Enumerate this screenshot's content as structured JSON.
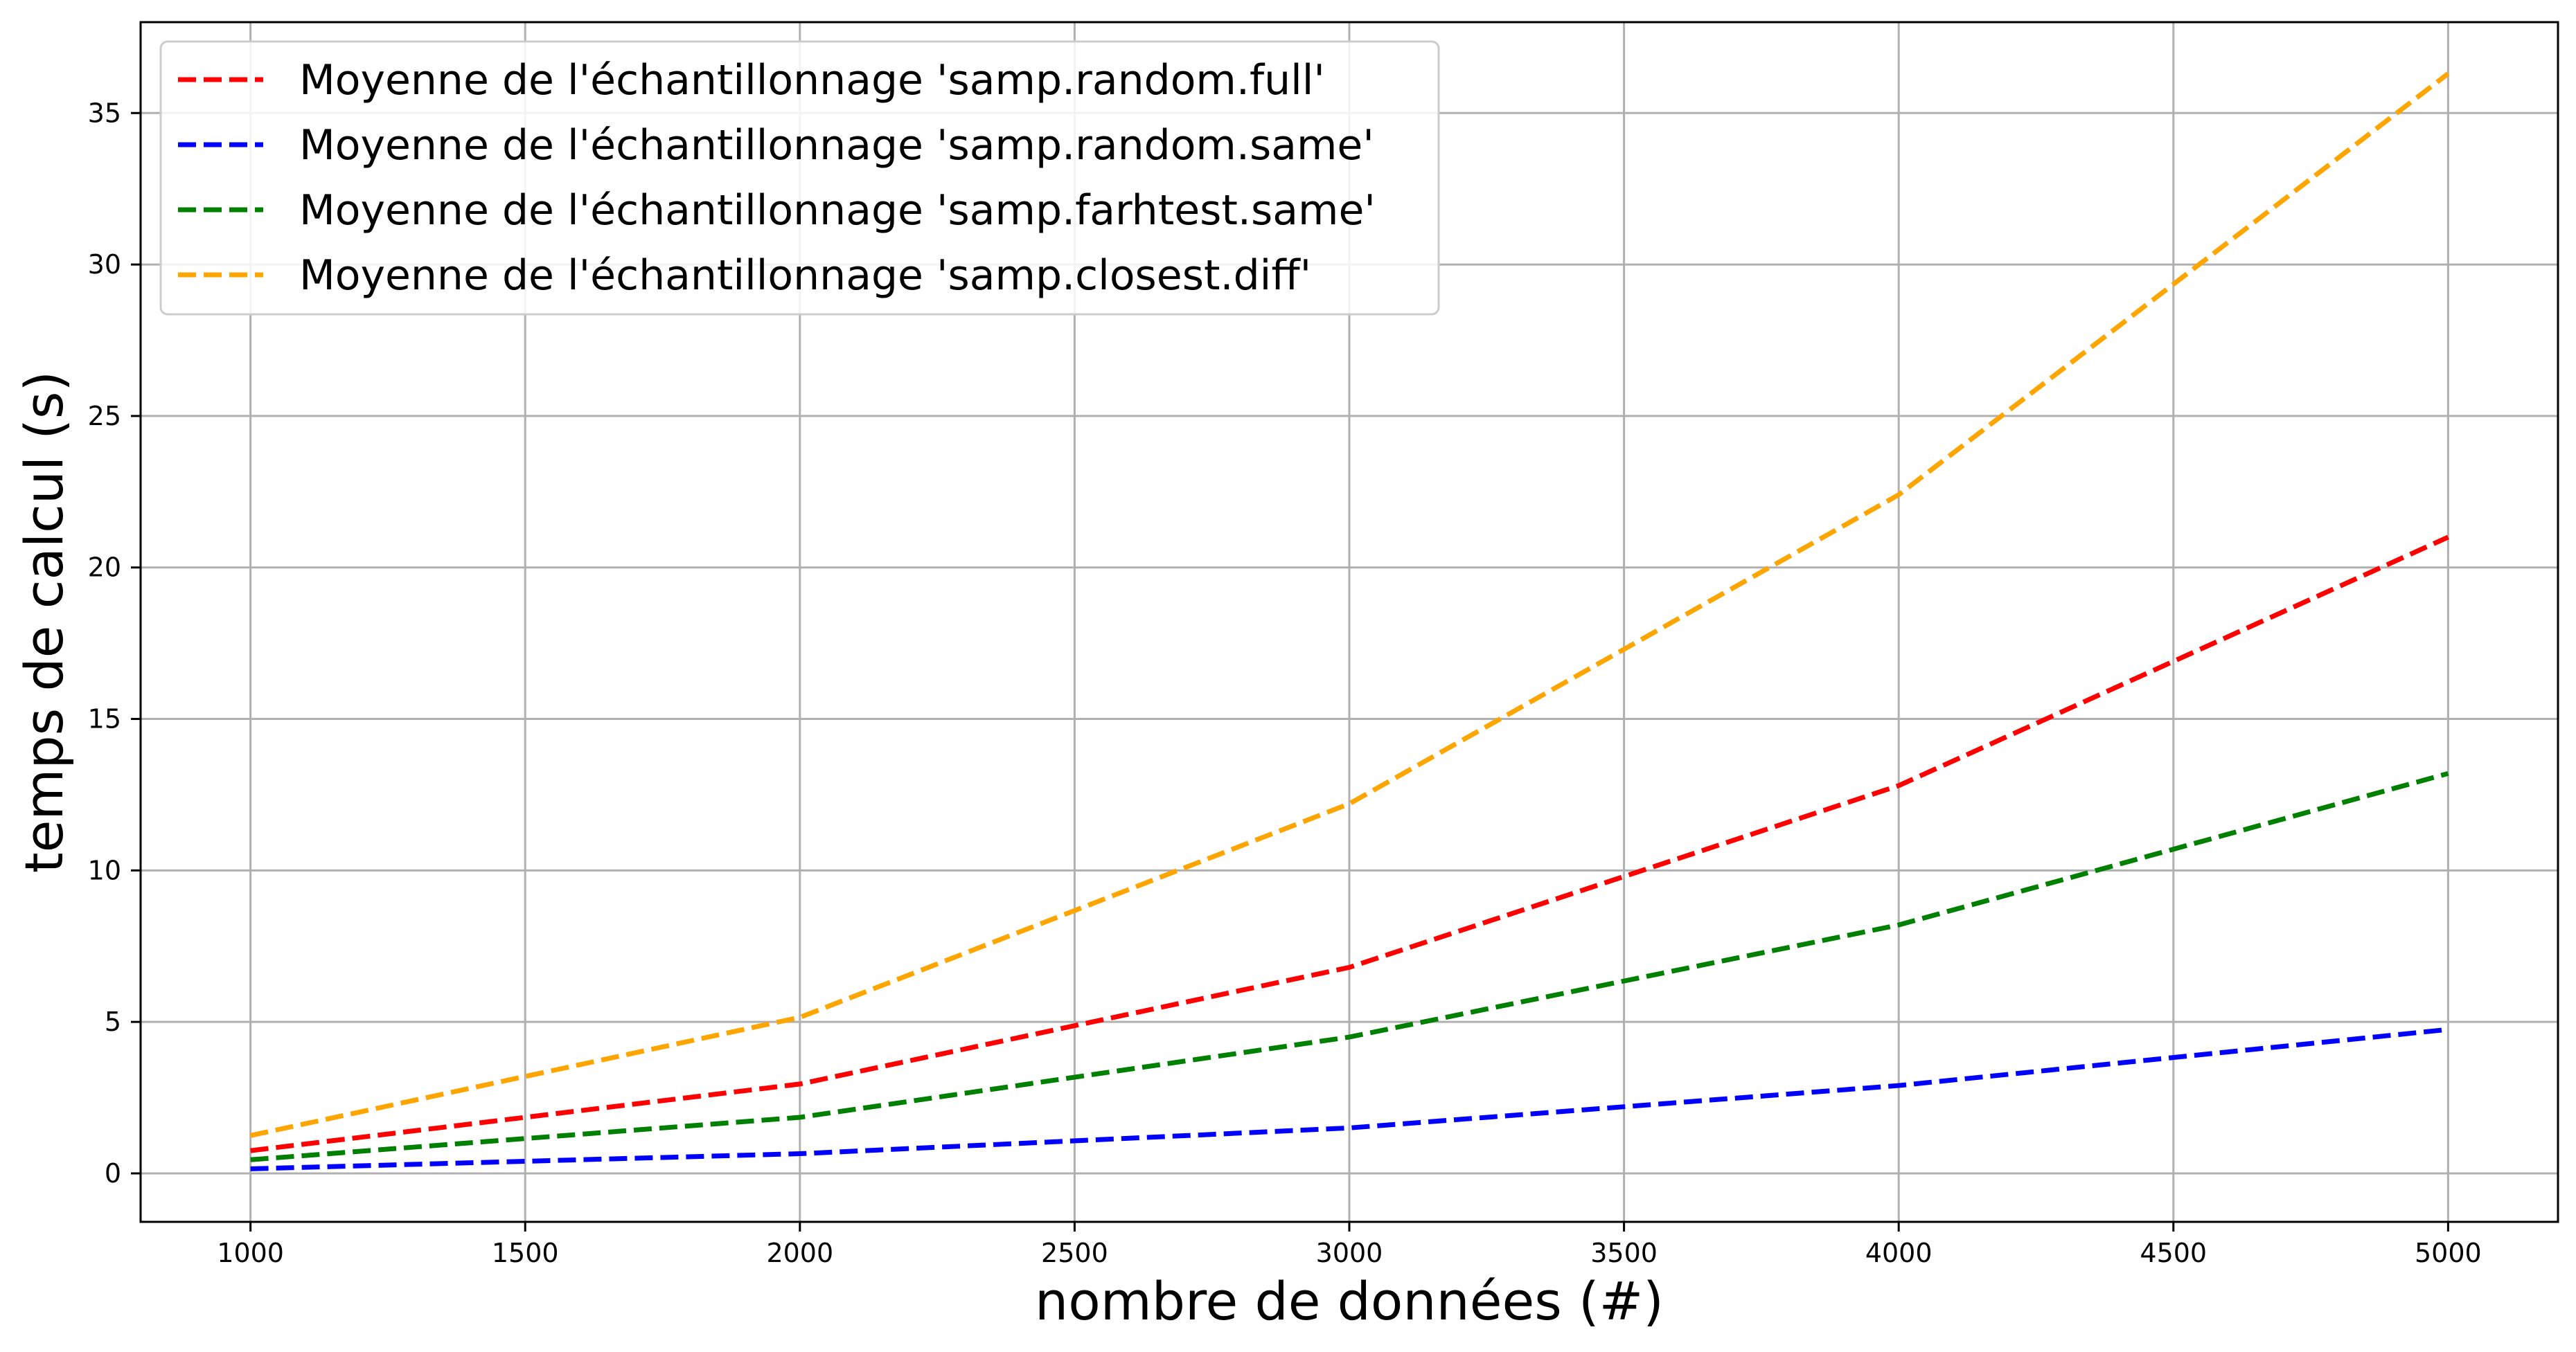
{
  "chart_data": {
    "type": "line",
    "title": "",
    "xlabel": "nombre de données (#)",
    "ylabel": "temps de calcul (s)",
    "x": [
      1000,
      2000,
      3000,
      4000,
      5000
    ],
    "xlim": [
      800,
      5200
    ],
    "ylim": [
      -1.6,
      38.0
    ],
    "x_ticks": [
      1000,
      1500,
      2000,
      2500,
      3000,
      3500,
      4000,
      4500,
      5000
    ],
    "y_ticks": [
      0,
      5,
      10,
      15,
      20,
      25,
      30,
      35
    ],
    "grid": true,
    "legend_position": "top-left",
    "line_style": "dashed",
    "series": [
      {
        "name": "Moyenne de l'échantillonnage 'samp.random.full'",
        "color": "#ff0000",
        "values": [
          0.75,
          2.95,
          6.8,
          12.8,
          21.0
        ]
      },
      {
        "name": "Moyenne de l'échantillonnage 'samp.random.same'",
        "color": "#0000ff",
        "values": [
          0.15,
          0.65,
          1.5,
          2.9,
          4.75
        ]
      },
      {
        "name": "Moyenne de l'échantillonnage 'samp.farhtest.same'",
        "color": "#008000",
        "values": [
          0.45,
          1.85,
          4.5,
          8.2,
          13.2
        ]
      },
      {
        "name": "Moyenne de l'échantillonnage 'samp.closest.diff'",
        "color": "#ffa500",
        "values": [
          1.25,
          5.15,
          12.2,
          22.4,
          36.3
        ]
      }
    ]
  }
}
